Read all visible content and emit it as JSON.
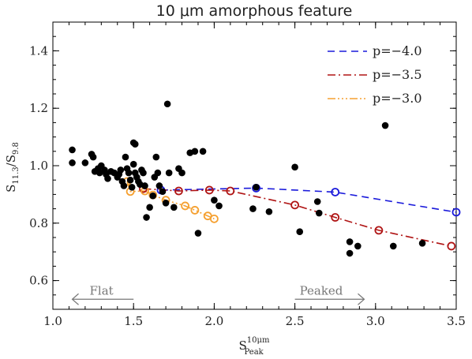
{
  "chart_data": {
    "type": "scatter",
    "title": "10 μm amorphous feature",
    "xlabel": {
      "base": "S",
      "sup": "10μm",
      "sub": "Peak"
    },
    "ylabel": {
      "base": "S",
      "sub": "11.3",
      "mid": "/S",
      "sub2": "9.8"
    },
    "xlim": [
      1.0,
      3.5
    ],
    "ylim": [
      0.5,
      1.5
    ],
    "xticks": [
      1.0,
      1.5,
      2.0,
      2.5,
      3.0,
      3.5
    ],
    "xtick_labels": [
      "1.0",
      "1.5",
      "2.0",
      "2.5",
      "3.0",
      "3.5"
    ],
    "yticks": [
      0.6,
      0.8,
      1.0,
      1.2,
      1.4
    ],
    "ytick_labels": [
      "0.6",
      "0.8",
      "1.0",
      "1.2",
      "1.4"
    ],
    "grid": false,
    "legend_position": "top-right",
    "observations": {
      "color": "#000000",
      "points": [
        [
          1.12,
          1.055
        ],
        [
          1.12,
          1.01
        ],
        [
          1.2,
          1.01
        ],
        [
          1.24,
          1.04
        ],
        [
          1.25,
          1.03
        ],
        [
          1.26,
          0.98
        ],
        [
          1.28,
          0.99
        ],
        [
          1.29,
          0.975
        ],
        [
          1.3,
          1.0
        ],
        [
          1.32,
          0.985
        ],
        [
          1.33,
          0.97
        ],
        [
          1.34,
          0.955
        ],
        [
          1.36,
          0.98
        ],
        [
          1.38,
          0.975
        ],
        [
          1.4,
          0.96
        ],
        [
          1.41,
          0.97
        ],
        [
          1.42,
          0.985
        ],
        [
          1.43,
          0.945
        ],
        [
          1.44,
          0.93
        ],
        [
          1.45,
          1.03
        ],
        [
          1.46,
          0.99
        ],
        [
          1.47,
          0.975
        ],
        [
          1.48,
          0.95
        ],
        [
          1.49,
          0.925
        ],
        [
          1.5,
          1.08
        ],
        [
          1.5,
          1.005
        ],
        [
          1.51,
          1.075
        ],
        [
          1.51,
          0.975
        ],
        [
          1.52,
          0.96
        ],
        [
          1.53,
          0.945
        ],
        [
          1.54,
          0.935
        ],
        [
          1.55,
          0.985
        ],
        [
          1.56,
          0.975
        ],
        [
          1.57,
          0.93
        ],
        [
          1.58,
          0.82
        ],
        [
          1.6,
          0.855
        ],
        [
          1.62,
          0.895
        ],
        [
          1.63,
          0.96
        ],
        [
          1.64,
          1.03
        ],
        [
          1.65,
          0.975
        ],
        [
          1.66,
          0.93
        ],
        [
          1.68,
          0.91
        ],
        [
          1.7,
          0.87
        ],
        [
          1.71,
          1.215
        ],
        [
          1.72,
          0.975
        ],
        [
          1.75,
          0.855
        ],
        [
          1.78,
          0.99
        ],
        [
          1.8,
          0.975
        ],
        [
          1.85,
          1.045
        ],
        [
          1.88,
          1.05
        ],
        [
          1.9,
          0.765
        ],
        [
          1.93,
          1.05
        ],
        [
          2.0,
          0.88
        ],
        [
          2.03,
          0.86
        ],
        [
          2.24,
          0.85
        ],
        [
          2.26,
          0.925
        ],
        [
          2.34,
          0.84
        ],
        [
          2.5,
          0.995
        ],
        [
          2.53,
          0.77
        ],
        [
          2.64,
          0.875
        ],
        [
          2.65,
          0.835
        ],
        [
          2.84,
          0.735
        ],
        [
          2.84,
          0.695
        ],
        [
          2.89,
          0.72
        ],
        [
          3.06,
          1.14
        ],
        [
          3.11,
          0.72
        ],
        [
          3.29,
          0.73
        ]
      ]
    },
    "series": [
      {
        "name": "p=−4.0",
        "color": "#1a1adb",
        "dash": "dashed",
        "x": [
          1.67,
          2.26,
          2.75,
          3.5
        ],
        "y": [
          0.915,
          0.922,
          0.908,
          0.838
        ]
      },
      {
        "name": "p=−3.5",
        "color": "#b01515",
        "dash": "dashdot",
        "x": [
          1.56,
          1.78,
          1.97,
          2.1,
          2.5,
          2.75,
          3.02,
          3.47
        ],
        "y": [
          0.92,
          0.912,
          0.915,
          0.912,
          0.863,
          0.82,
          0.775,
          0.72
        ]
      },
      {
        "name": "p=−3.0",
        "color": "#f5a030",
        "dash": "dashdotdotdot",
        "x": [
          1.46,
          1.48,
          1.57,
          1.62,
          1.7,
          1.82,
          1.88,
          1.96,
          2.0
        ],
        "y": [
          0.945,
          0.91,
          0.912,
          0.898,
          0.88,
          0.86,
          0.845,
          0.825,
          0.815
        ]
      }
    ],
    "annotations": [
      {
        "text": "Flat",
        "direction": "left",
        "x_from": 1.5,
        "x_to": 1.12,
        "y": 0.535
      },
      {
        "text": "Peaked",
        "direction": "right",
        "x_from": 2.5,
        "x_to": 2.93,
        "y": 0.535
      }
    ]
  }
}
